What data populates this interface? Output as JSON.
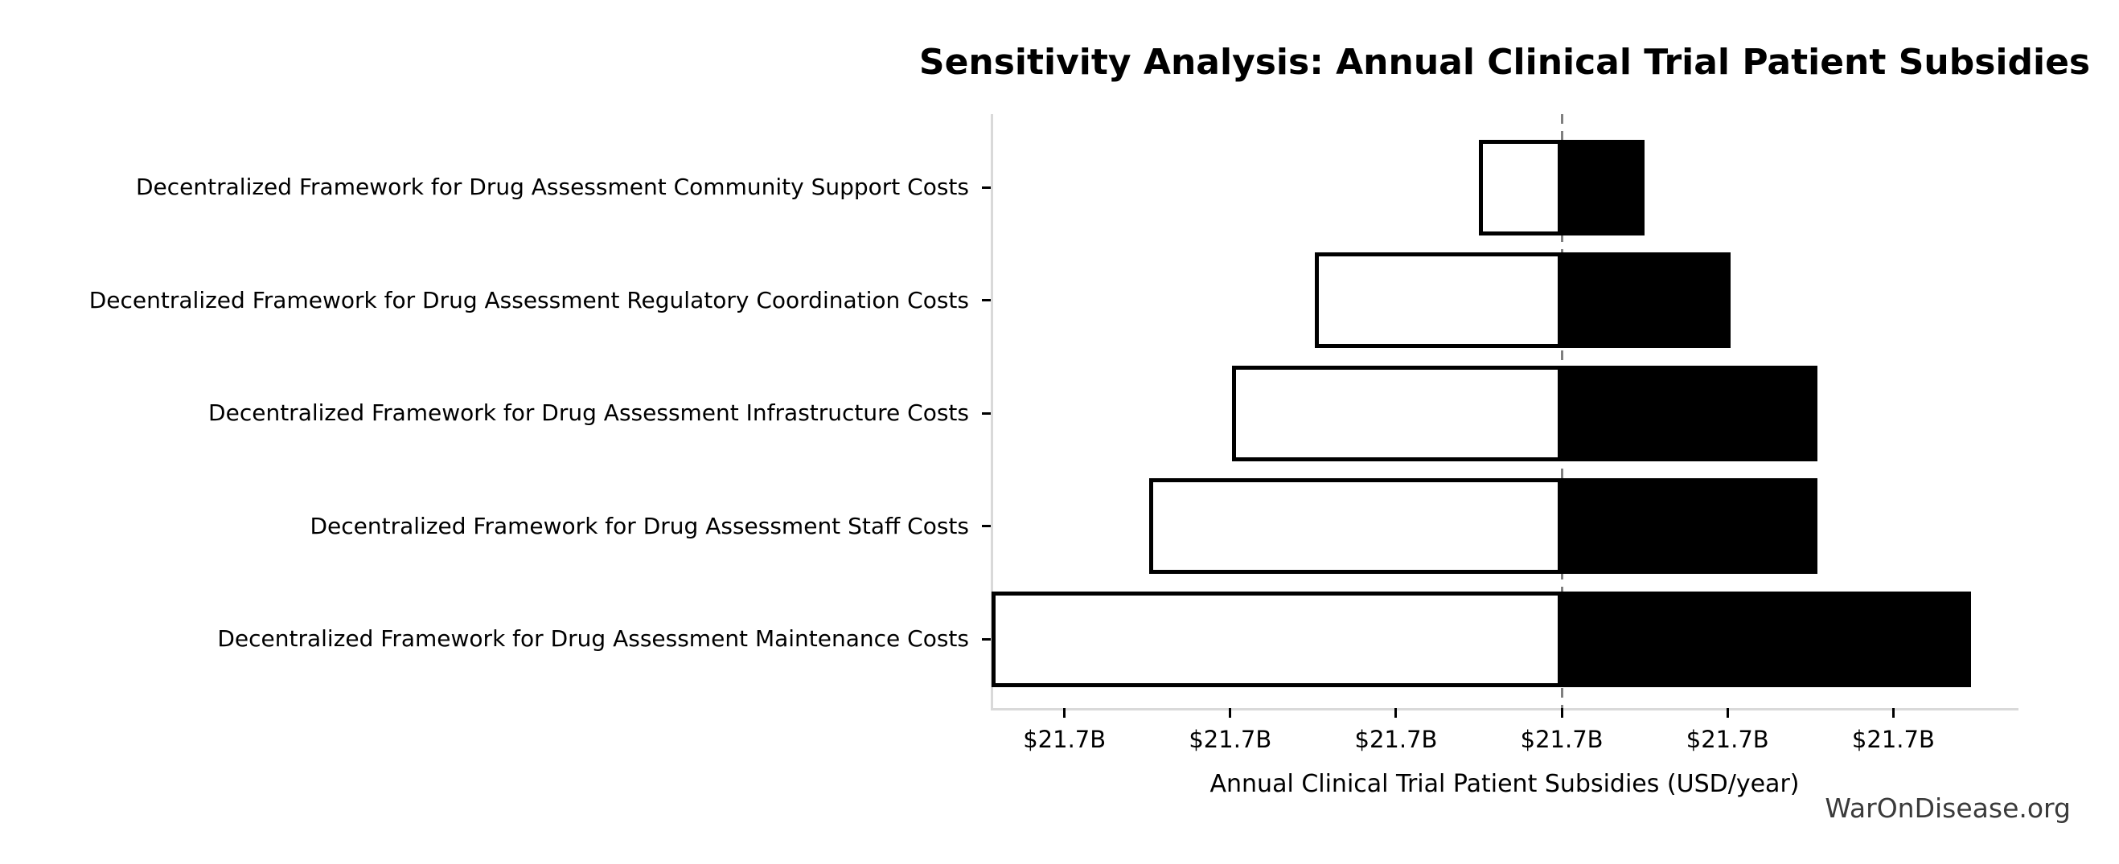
{
  "page": {
    "watermark": "WarOnDisease.org"
  },
  "chart_data": {
    "type": "bar",
    "variant": "tornado-sensitivity",
    "orientation": "horizontal",
    "title": "Sensitivity Analysis: Annual Clinical Trial Patient Subsidies",
    "xlabel": "Annual Clinical Trial Patient Subsidies (USD/year)",
    "ylabel": "",
    "grid": false,
    "legend": false,
    "baseline_value_label": "$21.7B",
    "x_tick_units": [
      -3,
      -2,
      -1,
      0,
      1,
      2
    ],
    "x_tick_labels": [
      "$21.7B",
      "$21.7B",
      "$21.7B",
      "$21.7B",
      "$21.7B",
      "$21.7B"
    ],
    "xlim_units": [
      -3.44,
      2.75
    ],
    "categories": [
      "Decentralized Framework for Drug Assessment Community Support Costs",
      "Decentralized Framework for Drug Assessment Regulatory Coordination Costs",
      "Decentralized Framework for Drug Assessment Infrastructure Costs",
      "Decentralized Framework for Drug Assessment Staff Costs",
      "Decentralized Framework for Drug Assessment Maintenance Costs"
    ],
    "bars": [
      {
        "label": "Decentralized Framework for Drug Assessment Community Support Costs",
        "low_units": -0.5,
        "high_units": 0.5,
        "low_value_label": "$21.7B",
        "high_value_label": "$21.7B"
      },
      {
        "label": "Decentralized Framework for Drug Assessment Regulatory Coordination Costs",
        "low_units": -1.49,
        "high_units": 1.02,
        "low_value_label": "$21.7B",
        "high_value_label": "$21.7B"
      },
      {
        "label": "Decentralized Framework for Drug Assessment Infrastructure Costs",
        "low_units": -1.99,
        "high_units": 1.54,
        "low_value_label": "$21.7B",
        "high_value_label": "$21.7B"
      },
      {
        "label": "Decentralized Framework for Drug Assessment Staff Costs",
        "low_units": -2.49,
        "high_units": 1.54,
        "low_value_label": "$21.7B",
        "high_value_label": "$21.7B"
      },
      {
        "label": "Decentralized Framework for Drug Assessment Maintenance Costs",
        "low_units": -3.44,
        "high_units": 2.47,
        "low_value_label": "$21.7B",
        "high_value_label": "$21.7B"
      }
    ],
    "colors": {
      "low_fill": "#ffffff",
      "high_fill": "#000000",
      "bar_edge": "#000000",
      "baseline_line": "#7f7f7f",
      "spine": "#d9d9d9",
      "watermark_text": "#3a3a3a"
    }
  }
}
